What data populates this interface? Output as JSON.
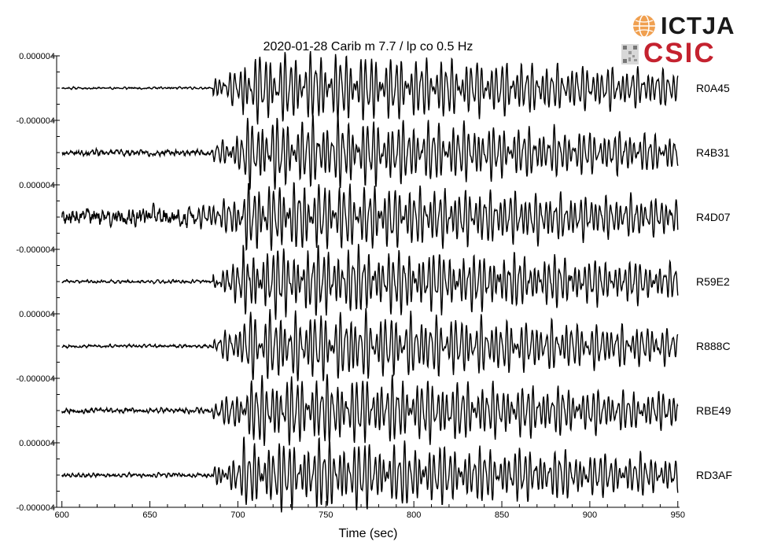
{
  "chart_data": {
    "type": "line",
    "title": "2020-01-28 Carib m 7.7  / lp co 0.5 Hz",
    "xlabel": "Time (sec)",
    "xlim": [
      597,
      951
    ],
    "x_ticks": [
      600,
      650,
      700,
      750,
      800,
      850,
      900,
      950
    ],
    "amplitude_unit_labels": [
      "0.000004",
      "-0.000004"
    ],
    "y_tick_labels": [
      "0.000004",
      "-0.000004",
      "0.000004",
      "-0.000004",
      "0.000004",
      "-0.000004",
      "0.000004",
      "-0.000004"
    ],
    "grid": false,
    "series": [
      {
        "name": "R0A45",
        "noise": 0.08,
        "arrival": 686,
        "peak": 1.0,
        "seed": 11
      },
      {
        "name": "R4B31",
        "noise": 0.22,
        "arrival": 686,
        "peak": 1.0,
        "seed": 23
      },
      {
        "name": "R4D07",
        "noise": 0.7,
        "arrival": 676,
        "peak": 1.0,
        "seed": 37
      },
      {
        "name": "R59E2",
        "noise": 0.12,
        "arrival": 686,
        "peak": 1.0,
        "seed": 41
      },
      {
        "name": "R888C",
        "noise": 0.12,
        "arrival": 686,
        "peak": 1.0,
        "seed": 53
      },
      {
        "name": "RBE49",
        "noise": 0.18,
        "arrival": 686,
        "peak": 1.0,
        "seed": 67
      },
      {
        "name": "RD3AF",
        "noise": 0.15,
        "arrival": 686,
        "peak": 1.0,
        "seed": 79
      }
    ]
  },
  "logo": {
    "ictja": "ICTJA",
    "csic": "CSIC"
  },
  "colors": {
    "trace": "#000000",
    "csic_red": "#c4222f",
    "globe_orange": "#f0a050"
  }
}
